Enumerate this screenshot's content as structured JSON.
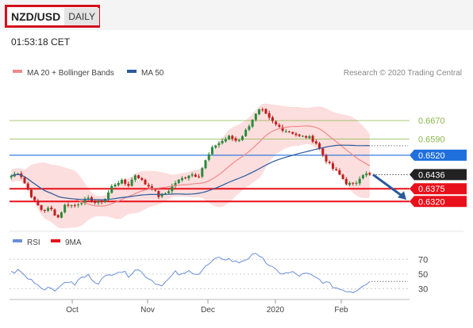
{
  "header": {
    "pair": "NZD/USD",
    "period": "DAILY"
  },
  "time": "01:53:18 CET",
  "copyright": "Research © 2020 Trading Central",
  "colors": {
    "resistance": "#8ab84a",
    "pivot": "#1f6fdc",
    "support": "#e8101a",
    "ma20": "#f08a8a",
    "ma50": "#2b5a9a",
    "bands": "#fbd8d8",
    "rsi": "#6a8fd8",
    "rsi_ma": "#e8101a",
    "candle_up": "#2a8a3a",
    "candle_down": "#c21d1d"
  },
  "chart_data": {
    "type": "candlestick",
    "legend": [
      {
        "name": "MA 20 + Bollinger Bands",
        "color": "#f08a8a"
      },
      {
        "name": "MA 50",
        "color": "#2b5a9a"
      }
    ],
    "x_ticks": [
      "Oct",
      "Nov",
      "Dec",
      "2020",
      "Feb"
    ],
    "y_range": [
      0.6225,
      0.6835
    ],
    "levels": [
      {
        "value": 0.667,
        "label": "0.6670",
        "type": "resistance"
      },
      {
        "value": 0.659,
        "label": "0.6590",
        "type": "resistance"
      },
      {
        "value": 0.652,
        "label": "0.6520",
        "type": "pivot"
      },
      {
        "value": 0.6436,
        "label": "0.6436",
        "type": "last"
      },
      {
        "value": 0.6375,
        "label": "0.6375",
        "type": "support"
      },
      {
        "value": 0.632,
        "label": "0.6320",
        "type": "support"
      }
    ],
    "key_levels": {
      "last": 0.6436,
      "support1": 0.6375
    },
    "control_points": [
      [
        0,
        0.643
      ],
      [
        5,
        0.645
      ],
      [
        10,
        0.638
      ],
      [
        15,
        0.632
      ],
      [
        20,
        0.628
      ],
      [
        25,
        0.629
      ],
      [
        30,
        0.625
      ],
      [
        35,
        0.631
      ],
      [
        40,
        0.63
      ],
      [
        45,
        0.632
      ],
      [
        50,
        0.633
      ],
      [
        55,
        0.631
      ],
      [
        60,
        0.633
      ],
      [
        65,
        0.639
      ],
      [
        70,
        0.641
      ],
      [
        75,
        0.639
      ],
      [
        80,
        0.644
      ],
      [
        85,
        0.64
      ],
      [
        90,
        0.638
      ],
      [
        95,
        0.634
      ],
      [
        100,
        0.636
      ],
      [
        105,
        0.64
      ],
      [
        110,
        0.642
      ],
      [
        115,
        0.644
      ],
      [
        120,
        0.643
      ],
      [
        125,
        0.65
      ],
      [
        130,
        0.656
      ],
      [
        135,
        0.658
      ],
      [
        140,
        0.66
      ],
      [
        145,
        0.658
      ],
      [
        150,
        0.662
      ],
      [
        155,
        0.668
      ],
      [
        160,
        0.672
      ],
      [
        165,
        0.668
      ],
      [
        170,
        0.665
      ],
      [
        175,
        0.663
      ],
      [
        180,
        0.662
      ],
      [
        185,
        0.66
      ],
      [
        190,
        0.66
      ],
      [
        195,
        0.658
      ],
      [
        200,
        0.652
      ],
      [
        205,
        0.647
      ],
      [
        210,
        0.644
      ],
      [
        215,
        0.64
      ],
      [
        220,
        0.639
      ],
      [
        225,
        0.644
      ],
      [
        230,
        0.6436
      ]
    ],
    "rsi": {
      "legend": [
        {
          "name": "RSI",
          "color": "#6a8fd8"
        },
        {
          "name": "9MA",
          "color": "#e8101a"
        }
      ],
      "y_ticks": [
        {
          "value": 70,
          "label": "70"
        },
        {
          "value": 50,
          "label": "50"
        },
        {
          "value": 30,
          "label": "30"
        }
      ],
      "y_range": [
        22,
        80
      ],
      "last": 40,
      "points": [
        [
          0,
          52
        ],
        [
          5,
          55
        ],
        [
          10,
          45
        ],
        [
          15,
          40
        ],
        [
          20,
          30
        ],
        [
          25,
          33
        ],
        [
          30,
          28
        ],
        [
          35,
          42
        ],
        [
          40,
          35
        ],
        [
          45,
          45
        ],
        [
          50,
          48
        ],
        [
          55,
          38
        ],
        [
          60,
          45
        ],
        [
          65,
          52
        ],
        [
          70,
          55
        ],
        [
          75,
          48
        ],
        [
          80,
          58
        ],
        [
          85,
          50
        ],
        [
          90,
          42
        ],
        [
          95,
          35
        ],
        [
          100,
          40
        ],
        [
          105,
          52
        ],
        [
          110,
          48
        ],
        [
          115,
          55
        ],
        [
          120,
          50
        ],
        [
          125,
          60
        ],
        [
          130,
          68
        ],
        [
          135,
          72
        ],
        [
          140,
          70
        ],
        [
          145,
          65
        ],
        [
          150,
          70
        ],
        [
          155,
          75
        ],
        [
          160,
          78
        ],
        [
          165,
          60
        ],
        [
          170,
          55
        ],
        [
          175,
          50
        ],
        [
          180,
          52
        ],
        [
          185,
          48
        ],
        [
          190,
          50
        ],
        [
          195,
          45
        ],
        [
          200,
          40
        ],
        [
          205,
          35
        ],
        [
          210,
          30
        ],
        [
          215,
          28
        ],
        [
          220,
          26
        ],
        [
          225,
          35
        ],
        [
          230,
          40
        ]
      ]
    }
  }
}
